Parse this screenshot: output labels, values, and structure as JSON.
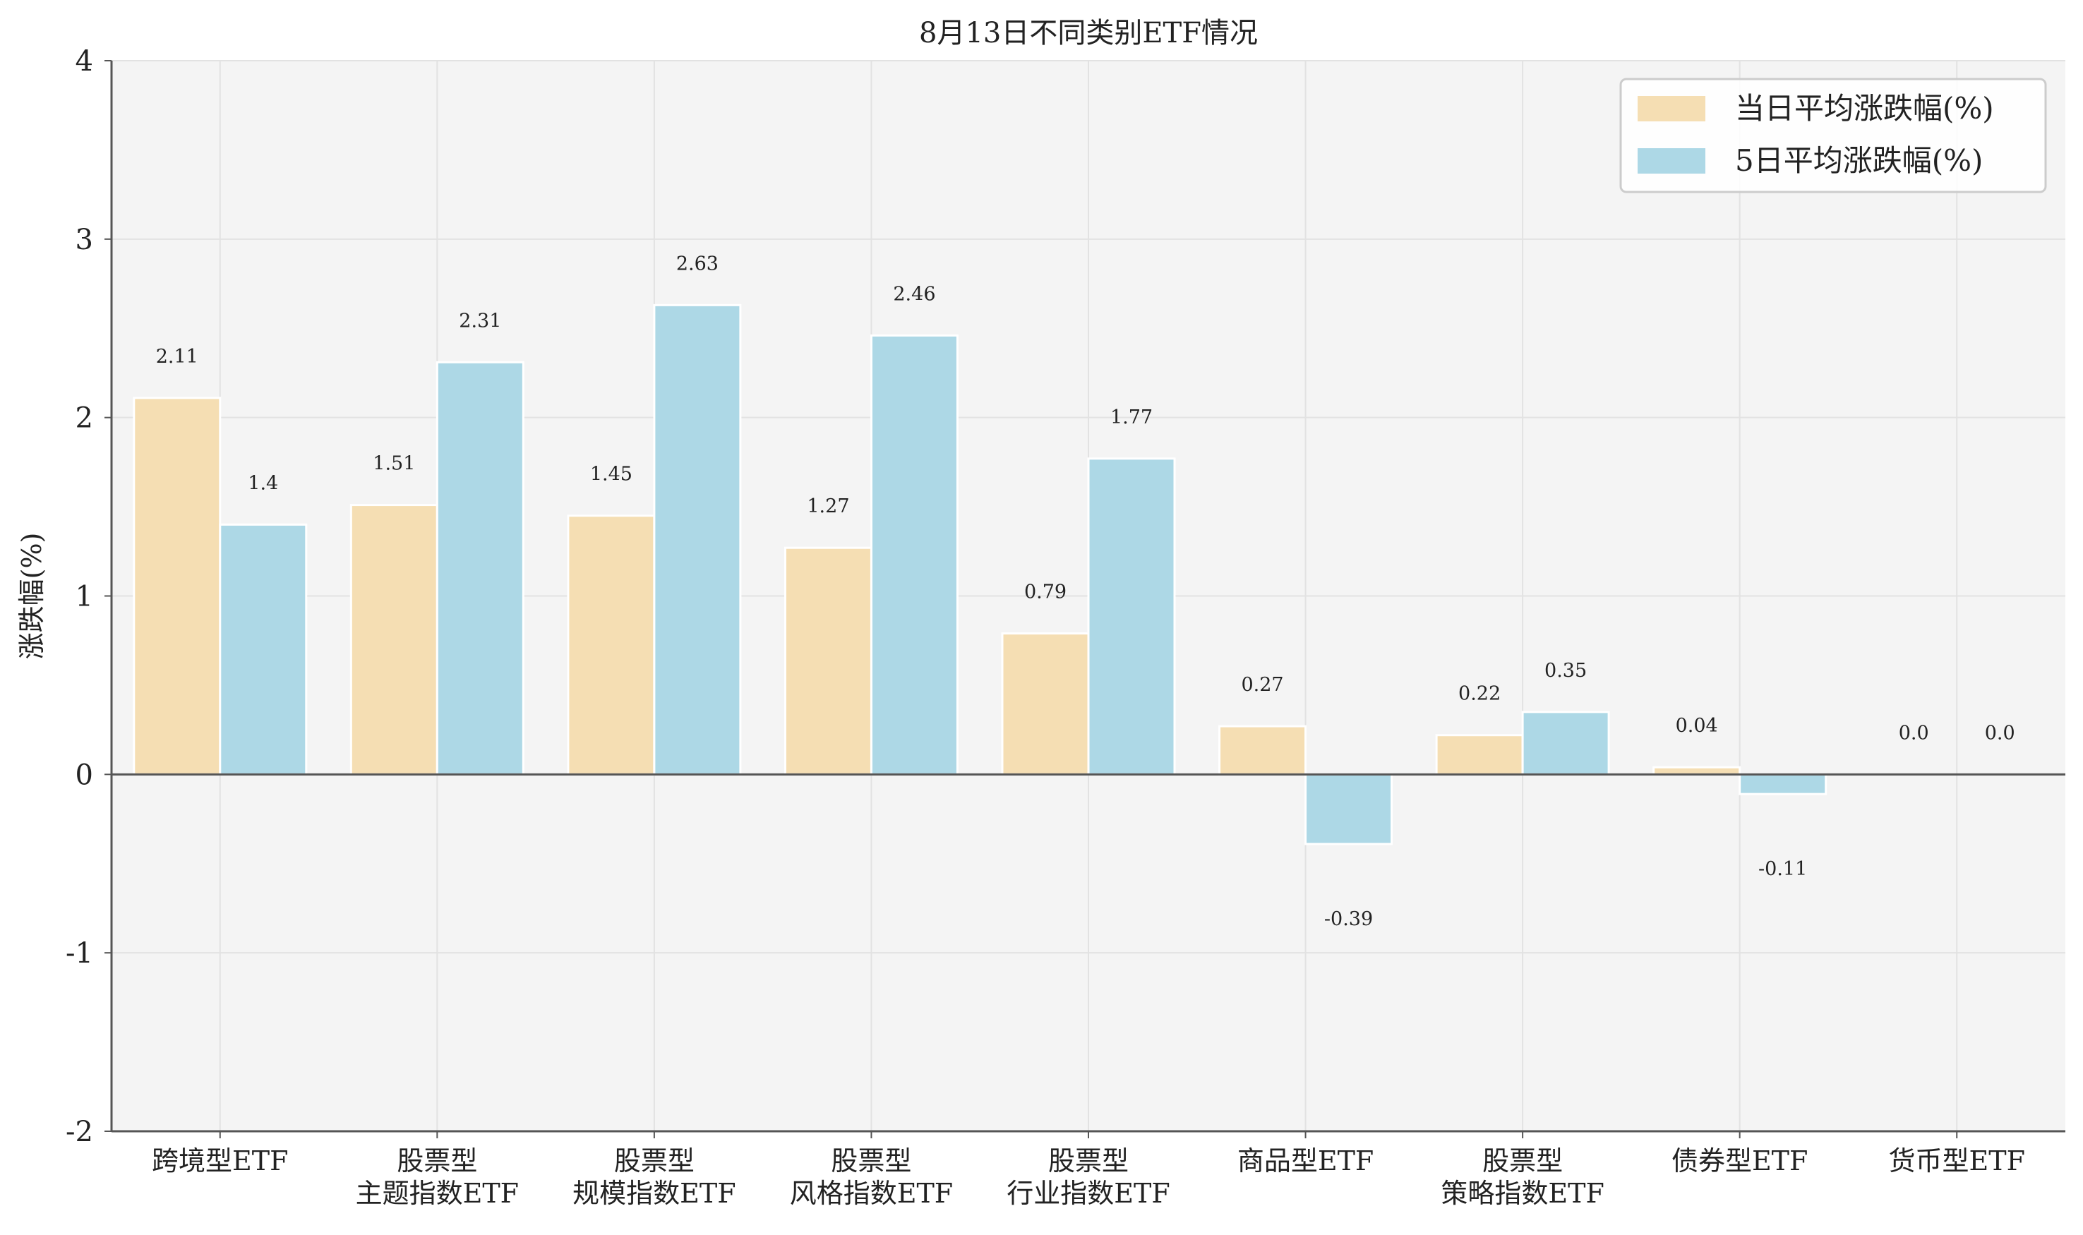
{
  "chart_data": {
    "type": "bar",
    "title": "8月13日不同类别ETF情况",
    "xlabel": "",
    "ylabel": "涨跌幅(%)",
    "ylim": [
      -2,
      4
    ],
    "yticks": [
      "-2",
      "-1",
      "0",
      "1",
      "2",
      "3",
      "4"
    ],
    "grid": true,
    "legend_position": "top-right",
    "categories": [
      [
        "跨境型ETF"
      ],
      [
        "股票型",
        "主题指数ETF"
      ],
      [
        "股票型",
        "规模指数ETF"
      ],
      [
        "股票型",
        "风格指数ETF"
      ],
      [
        "股票型",
        "行业指数ETF"
      ],
      [
        "商品型ETF"
      ],
      [
        "股票型",
        "策略指数ETF"
      ],
      [
        "债券型ETF"
      ],
      [
        "货币型ETF"
      ]
    ],
    "series": [
      {
        "name": "当日平均涨跌幅(%)",
        "color": "#F5DEB3",
        "values": [
          2.11,
          1.51,
          1.45,
          1.27,
          0.79,
          0.27,
          0.22,
          0.04,
          0.0
        ],
        "labels": [
          "2.11",
          "1.51",
          "1.45",
          "1.27",
          "0.79",
          "0.27",
          "0.22",
          "0.04",
          "0.0"
        ]
      },
      {
        "name": "5日平均涨跌幅(%)",
        "color": "#ADD8E6",
        "values": [
          1.4,
          2.31,
          2.63,
          2.46,
          1.77,
          -0.39,
          0.35,
          -0.11,
          0.0
        ],
        "labels": [
          "1.4",
          "2.31",
          "2.63",
          "2.46",
          "1.77",
          "-0.39",
          "0.35",
          "-0.11",
          "0.0"
        ]
      }
    ],
    "colors": {
      "plot_background": "#F4F4F4",
      "grid": "#E2E2E2",
      "axis": "#555555",
      "zero_line": "#555555"
    }
  }
}
